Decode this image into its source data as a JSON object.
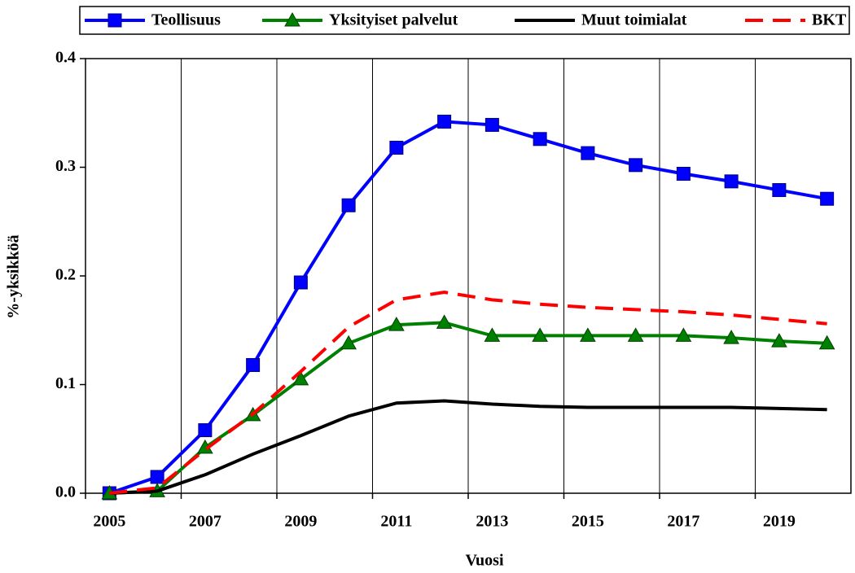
{
  "chart_data": {
    "type": "line",
    "x_label": "Vuosi",
    "y_label": "%-yksikköä",
    "categories": [
      "2005",
      null,
      "2007",
      null,
      "2009",
      null,
      "2011",
      null,
      "2013",
      null,
      "2015",
      null,
      "2017",
      null,
      "2019",
      null
    ],
    "series": [
      {
        "name": "Teollisuus",
        "color": "#0000ff",
        "marker": "square",
        "dash": false,
        "values": [
          0,
          0.015,
          0.058,
          0.118,
          0.194,
          0.265,
          0.318,
          0.342,
          0.339,
          0.326,
          0.313,
          0.302,
          0.294,
          0.287,
          0.279,
          0.271
        ]
      },
      {
        "name": "Yksityiset palvelut",
        "color": "#008000",
        "marker": "triangle",
        "dash": false,
        "values": [
          0,
          0.002,
          0.042,
          0.072,
          0.105,
          0.138,
          0.155,
          0.157,
          0.145,
          0.145,
          0.145,
          0.145,
          0.145,
          0.143,
          0.14,
          0.138
        ]
      },
      {
        "name": "Muut toimialat",
        "color": "#000000",
        "marker": "none",
        "dash": false,
        "values": [
          0,
          0.002,
          0.017,
          0.036,
          0.053,
          0.071,
          0.083,
          0.085,
          0.082,
          0.08,
          0.079,
          0.079,
          0.079,
          0.079,
          0.078,
          0.077
        ]
      },
      {
        "name": "BKT",
        "color": "#ff0000",
        "marker": "none",
        "dash": true,
        "values": [
          0,
          0.005,
          0.04,
          0.073,
          0.112,
          0.153,
          0.178,
          0.185,
          0.178,
          0.174,
          0.171,
          0.169,
          0.167,
          0.164,
          0.16,
          0.156
        ]
      }
    ],
    "ylim": [
      0,
      0.4
    ],
    "yticks": [
      {
        "value": 0,
        "label": "0.0"
      },
      0.1,
      0.2,
      0.3,
      0.4
    ],
    "grid": "x",
    "legend": "top"
  }
}
